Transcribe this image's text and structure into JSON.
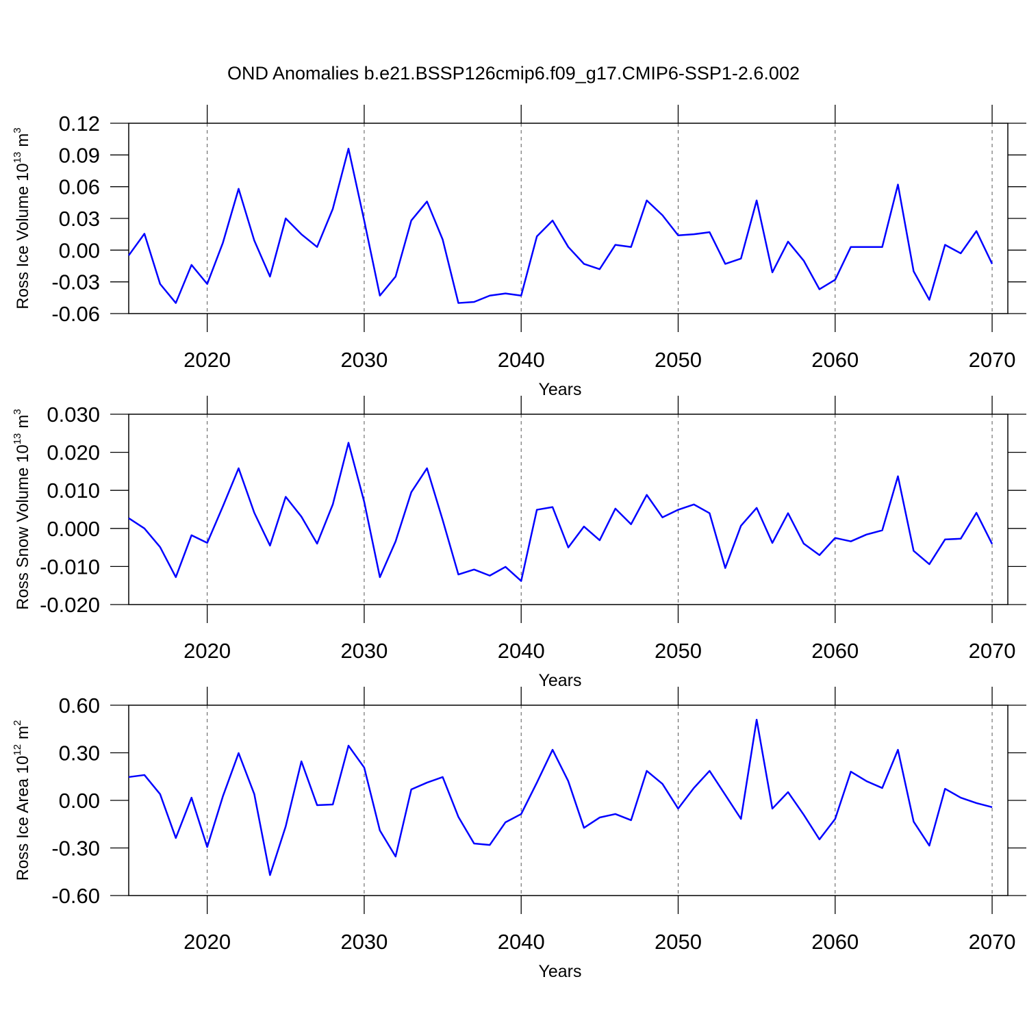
{
  "title": "OND Anomalies b.e21.BSSP126cmip6.f09_g17.CMIP6-SSP1-2.6.002",
  "chart_data": [
    {
      "type": "line",
      "ylabel": {
        "text": "Ross Ice Volume 10",
        "exponent": "13",
        "unit": "m",
        "unit_exponent": "3"
      },
      "xlabel": "Years",
      "x": [
        2015,
        2016,
        2017,
        2018,
        2019,
        2020,
        2021,
        2022,
        2023,
        2024,
        2025,
        2026,
        2027,
        2028,
        2029,
        2030,
        2031,
        2032,
        2033,
        2034,
        2035,
        2036,
        2037,
        2038,
        2039,
        2040,
        2041,
        2042,
        2043,
        2044,
        2045,
        2046,
        2047,
        2048,
        2049,
        2050,
        2051,
        2052,
        2053,
        2054,
        2055,
        2056,
        2057,
        2058,
        2059,
        2060,
        2061,
        2062,
        2063,
        2064,
        2065,
        2066,
        2067,
        2068,
        2069,
        2070
      ],
      "series": [
        {
          "color": "#0000ff",
          "values": [
            -0.005,
            0.0155,
            -0.032,
            -0.05,
            -0.014,
            -0.032,
            0.007,
            0.058,
            0.009,
            -0.025,
            0.03,
            0.015,
            0.003,
            0.039,
            0.096,
            0.028,
            -0.043,
            -0.025,
            0.028,
            0.046,
            0.01,
            -0.05,
            -0.049,
            -0.043,
            -0.041,
            -0.043,
            0.013,
            0.028,
            0.003,
            -0.013,
            -0.018,
            0.005,
            0.003,
            0.047,
            0.033,
            0.014,
            0.015,
            0.017,
            -0.013,
            -0.008,
            0.047,
            -0.021,
            0.008,
            -0.01,
            -0.037,
            -0.028,
            0.003,
            0.003,
            0.003,
            0.062,
            -0.02,
            -0.047,
            0.005,
            -0.003,
            0.018,
            -0.013
          ]
        }
      ],
      "xlim": [
        2015,
        2071
      ],
      "xticks": [
        2020,
        2030,
        2040,
        2050,
        2060,
        2070
      ],
      "ylim": [
        -0.06,
        0.12
      ],
      "yticks": [
        {
          "value": 0.12,
          "label": "0.12"
        },
        {
          "value": 0.09,
          "label": "0.09"
        },
        {
          "value": 0.06,
          "label": "0.06"
        },
        {
          "value": 0.03,
          "label": "0.03"
        },
        {
          "value": 0,
          "label": "0.00"
        },
        {
          "value": -0.03,
          "label": "-0.03"
        },
        {
          "value": -0.06,
          "label": "-0.06"
        }
      ],
      "grid": true
    },
    {
      "type": "line",
      "ylabel": {
        "text": "Ross Snow Volume 10",
        "exponent": "13",
        "unit": "m",
        "unit_exponent": "3"
      },
      "xlabel": "Years",
      "x": [
        2015,
        2016,
        2017,
        2018,
        2019,
        2020,
        2021,
        2022,
        2023,
        2024,
        2025,
        2026,
        2027,
        2028,
        2029,
        2030,
        2031,
        2032,
        2033,
        2034,
        2035,
        2036,
        2037,
        2038,
        2039,
        2040,
        2041,
        2042,
        2043,
        2044,
        2045,
        2046,
        2047,
        2048,
        2049,
        2050,
        2051,
        2052,
        2053,
        2054,
        2055,
        2056,
        2057,
        2058,
        2059,
        2060,
        2061,
        2062,
        2063,
        2064,
        2065,
        2066,
        2067,
        2068,
        2069,
        2070
      ],
      "series": [
        {
          "color": "#0000ff",
          "values": [
            0.0027,
            0.0,
            -0.0049,
            -0.0128,
            -0.0018,
            -0.0038,
            0.0058,
            0.0158,
            0.0041,
            -0.0045,
            0.0083,
            0.0031,
            -0.004,
            0.0063,
            0.0225,
            0.007,
            -0.0128,
            -0.0034,
            0.0095,
            0.0158,
            0.0022,
            -0.0121,
            -0.0108,
            -0.0124,
            -0.0101,
            -0.0138,
            0.0049,
            0.0056,
            -0.005,
            0.0005,
            -0.0031,
            0.0052,
            0.0011,
            0.0088,
            0.0029,
            0.0049,
            0.0063,
            0.004,
            -0.0104,
            0.0007,
            0.0054,
            -0.0038,
            0.004,
            -0.004,
            -0.007,
            -0.0025,
            -0.0034,
            -0.0016,
            -0.0005,
            0.0137,
            -0.0059,
            -0.0094,
            -0.0029,
            -0.0027,
            0.0041,
            -0.0041
          ]
        }
      ],
      "xlim": [
        2015,
        2071
      ],
      "xticks": [
        2020,
        2030,
        2040,
        2050,
        2060,
        2070
      ],
      "ylim": [
        -0.02,
        0.03
      ],
      "yticks": [
        {
          "value": 0.03,
          "label": "0.030"
        },
        {
          "value": 0.02,
          "label": "0.020"
        },
        {
          "value": 0.01,
          "label": "0.010"
        },
        {
          "value": 0,
          "label": "0.000"
        },
        {
          "value": -0.01,
          "label": "-0.010"
        },
        {
          "value": -0.02,
          "label": "-0.020"
        }
      ],
      "grid": true
    },
    {
      "type": "line",
      "ylabel": {
        "text": "Ross Ice Area 10",
        "exponent": "12",
        "unit": "m",
        "unit_exponent": "2"
      },
      "xlabel": "Years",
      "x": [
        2015,
        2016,
        2017,
        2018,
        2019,
        2020,
        2021,
        2022,
        2023,
        2024,
        2025,
        2026,
        2027,
        2028,
        2029,
        2030,
        2031,
        2032,
        2033,
        2034,
        2035,
        2036,
        2037,
        2038,
        2039,
        2040,
        2041,
        2042,
        2043,
        2044,
        2045,
        2046,
        2047,
        2048,
        2049,
        2050,
        2051,
        2052,
        2053,
        2054,
        2055,
        2056,
        2057,
        2058,
        2059,
        2060,
        2061,
        2062,
        2063,
        2064,
        2065,
        2066,
        2067,
        2068,
        2069,
        2070
      ],
      "series": [
        {
          "color": "#0000ff",
          "values": [
            0.147,
            0.16,
            0.039,
            -0.237,
            0.017,
            -0.294,
            0.026,
            0.298,
            0.039,
            -0.471,
            -0.164,
            0.246,
            -0.03,
            -0.026,
            0.345,
            0.207,
            -0.19,
            -0.354,
            0.069,
            0.112,
            0.147,
            -0.104,
            -0.272,
            -0.281,
            -0.138,
            -0.086,
            0.112,
            0.319,
            0.121,
            -0.173,
            -0.108,
            -0.086,
            -0.125,
            0.186,
            0.104,
            -0.052,
            0.078,
            0.186,
            0.035,
            -0.117,
            0.509,
            -0.052,
            0.052,
            -0.091,
            -0.246,
            -0.117,
            0.181,
            0.121,
            0.078,
            0.319,
            -0.134,
            -0.285,
            0.073,
            0.017,
            -0.017,
            -0.043
          ]
        }
      ],
      "xlim": [
        2015,
        2071
      ],
      "xticks": [
        2020,
        2030,
        2040,
        2050,
        2060,
        2070
      ],
      "ylim": [
        -0.6,
        0.6
      ],
      "yticks": [
        {
          "value": 0.6,
          "label": "0.60"
        },
        {
          "value": 0.3,
          "label": "0.30"
        },
        {
          "value": 0,
          "label": "0.00"
        },
        {
          "value": -0.3,
          "label": "-0.30"
        },
        {
          "value": -0.6,
          "label": "-0.60"
        }
      ],
      "grid": true
    }
  ]
}
